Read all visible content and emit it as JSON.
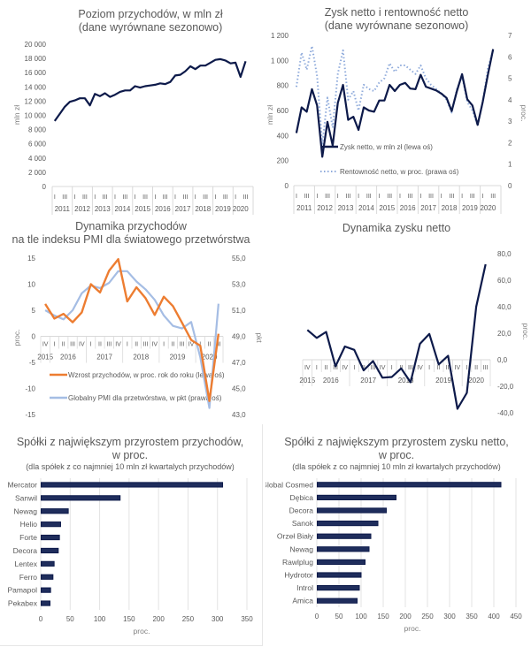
{
  "chart_data": [
    {
      "id": "revenue",
      "type": "line",
      "title": "Poziom przychodów, w mln zł",
      "subtitle": "(dane wyrównane sezonowo)",
      "ylabel": "mln zł",
      "xlabel": "",
      "ylim": [
        0,
        20000
      ],
      "yticks": [
        0,
        2000,
        4000,
        6000,
        8000,
        10000,
        12000,
        14000,
        16000,
        18000,
        20000
      ],
      "ytick_labels": [
        "0",
        "2 000",
        "4 000",
        "6 000",
        "8 000",
        "10 000",
        "12 000",
        "14 000",
        "16 000",
        "18 000",
        "20 000"
      ],
      "quarter_labels": [
        "I",
        "",
        "III",
        ""
      ],
      "years": [
        "2011",
        "2012",
        "2013",
        "2014",
        "2015",
        "2016",
        "2017",
        "2018",
        "2019",
        "2020"
      ],
      "last_year_quarters": 3,
      "grid": false,
      "series": [
        {
          "name": "Poziom przychodów",
          "color": "#0d1a4a",
          "style": "solid",
          "values": [
            9200,
            10200,
            11200,
            11900,
            12100,
            12400,
            12400,
            11400,
            13000,
            12700,
            13100,
            12600,
            12900,
            13300,
            13500,
            13500,
            14100,
            13900,
            14100,
            14200,
            14300,
            14500,
            14400,
            14700,
            15600,
            15700,
            16200,
            16900,
            16500,
            17000,
            17000,
            17400,
            17800,
            17900,
            17700,
            17300,
            17400,
            15400,
            17600
          ]
        }
      ]
    },
    {
      "id": "profit",
      "type": "line",
      "title": "Zysk netto i rentowność netto",
      "subtitle": "(dane wyrównane sezonowo)",
      "ylabel": "mln zł",
      "ylabel_right": "proc.",
      "ylim": [
        0,
        1200
      ],
      "ylim_right": [
        0,
        7
      ],
      "yticks": [
        0,
        200,
        400,
        600,
        800,
        1000,
        1200
      ],
      "ytick_labels": [
        "0",
        "200",
        "400",
        "600",
        "800",
        "1 000",
        "1 200"
      ],
      "yticks_right": [
        0,
        1,
        2,
        3,
        4,
        5,
        6,
        7
      ],
      "ytick_labels_right": [
        "0",
        "1",
        "2",
        "3",
        "4",
        "5",
        "6",
        "7"
      ],
      "quarter_labels": [
        "I",
        "",
        "III",
        ""
      ],
      "years": [
        "2011",
        "2012",
        "2013",
        "2014",
        "2015",
        "2016",
        "2017",
        "2018",
        "2019",
        "2020"
      ],
      "last_year_quarters": 3,
      "legend": [
        "Zysk netto, w mln zł (lewa oś)",
        "Rentowność netto, w proc. (prawa oś)"
      ],
      "series": [
        {
          "name": "Zysk netto, w mln zł (lewa oś)",
          "color": "#0d1a4a",
          "style": "solid",
          "axis": "left",
          "values": [
            420,
            625,
            590,
            770,
            640,
            230,
            510,
            320,
            660,
            805,
            525,
            550,
            445,
            625,
            600,
            590,
            680,
            680,
            805,
            755,
            805,
            820,
            775,
            770,
            885,
            790,
            775,
            760,
            735,
            700,
            595,
            755,
            890,
            690,
            640,
            485,
            670,
            890,
            1090
          ]
        },
        {
          "name": "Rentowność netto, w proc. (prawa oś)",
          "color": "#8eaadb",
          "style": "dotted",
          "axis": "right",
          "values": [
            4.6,
            6.2,
            5.4,
            6.5,
            5.1,
            1.9,
            4.1,
            2.7,
            5.2,
            6.3,
            4.0,
            4.4,
            3.5,
            4.7,
            4.5,
            4.4,
            4.8,
            5.0,
            5.7,
            5.3,
            5.6,
            5.6,
            5.4,
            5.2,
            5.6,
            5.0,
            4.7,
            4.5,
            4.3,
            4.0,
            3.4,
            4.5,
            5.1,
            3.9,
            3.5,
            2.8,
            3.9,
            5.5,
            6.3
          ]
        }
      ]
    },
    {
      "id": "revenue-dynamics",
      "type": "line",
      "title": "Dynamika przychodów",
      "subtitle": "na tle indeksu PMI dla światowego przetwórstwa",
      "ylabel": "proc.",
      "ylabel_right": "pkt",
      "ylim": [
        -15,
        15
      ],
      "ylim_right": [
        43.0,
        55.0
      ],
      "yticks": [
        -15,
        -10,
        -5,
        0,
        5,
        10,
        15
      ],
      "ytick_labels": [
        "-15",
        "-10",
        "-5",
        "0",
        "5",
        "10",
        "15"
      ],
      "yticks_right": [
        43,
        45,
        47,
        49,
        51,
        53,
        55
      ],
      "ytick_labels_right": [
        "43,0",
        "45,0",
        "47,0",
        "49,0",
        "51,0",
        "53,0",
        "55,0"
      ],
      "quarters": [
        "IV",
        "I",
        "II",
        "III",
        "IV",
        "I",
        "II",
        "III",
        "IV",
        "I",
        "II",
        "III",
        "IV",
        "I",
        "II",
        "III",
        "IV",
        "I",
        "II",
        "III"
      ],
      "year_groups": [
        {
          "label": "2015",
          "count": 1
        },
        {
          "label": "2016",
          "count": 4
        },
        {
          "label": "2017",
          "count": 4
        },
        {
          "label": "2018",
          "count": 4
        },
        {
          "label": "2019",
          "count": 4
        },
        {
          "label": "2020",
          "count": 3
        }
      ],
      "legend": [
        "Wzrost przychodów, w proc. rok do roku (lewa oś)",
        "Globalny PMI dla przetwórstwa, w pkt (prawa oś)"
      ],
      "series": [
        {
          "name": "Wzrost przychodów, w proc. rok do roku (lewa oś)",
          "color": "#ed7d31",
          "axis": "left",
          "values": [
            6.2,
            3.4,
            4.3,
            2.7,
            4.6,
            10.0,
            8.4,
            12.6,
            14.8,
            6.7,
            9.4,
            7.3,
            4.1,
            7.6,
            5.8,
            2.6,
            -0.7,
            -1.8,
            -12.4,
            0.5
          ]
        },
        {
          "name": "Globalny PMI dla przetwórstwa, w pkt (prawa oś)",
          "color": "#a5bde4",
          "axis": "right",
          "values": [
            51.0,
            50.6,
            50.3,
            51.0,
            52.3,
            52.9,
            52.7,
            53.1,
            54.0,
            54.0,
            53.2,
            52.6,
            51.8,
            50.6,
            49.8,
            49.6,
            50.1,
            47.4,
            43.5,
            51.5
          ]
        }
      ]
    },
    {
      "id": "profit-dynamics",
      "type": "line",
      "title": "Dynamika zysku netto",
      "ylabel_right": "proc.",
      "ylim": [
        -40,
        80
      ],
      "yticks": [
        -40,
        -20,
        0,
        20,
        40,
        60,
        80
      ],
      "ytick_labels": [
        "-40,0",
        "-20,0",
        "0,0",
        "20,0",
        "40,0",
        "60,0",
        "80,0"
      ],
      "quarters": [
        "IV",
        "I",
        "II",
        "III",
        "IV",
        "I",
        "II",
        "III",
        "IV",
        "I",
        "II",
        "III",
        "IV",
        "I",
        "II",
        "III",
        "IV",
        "I",
        "II",
        "III"
      ],
      "year_groups": [
        {
          "label": "2015",
          "count": 1
        },
        {
          "label": "2016",
          "count": 4
        },
        {
          "label": "2017",
          "count": 4
        },
        {
          "label": "2018",
          "count": 4
        },
        {
          "label": "2019",
          "count": 4
        },
        {
          "label": "2020",
          "count": 3
        }
      ],
      "series": [
        {
          "name": "Dynamika zysku netto",
          "color": "#0d1a4a",
          "values": [
            22.5,
            16.5,
            21.0,
            -5.0,
            10.0,
            7.5,
            -8.0,
            -1.0,
            -13.5,
            -13.0,
            -6.5,
            -17.0,
            12.0,
            19.5,
            -3.5,
            3.0,
            -37.0,
            -25.0,
            40.0,
            72.0
          ]
        }
      ]
    },
    {
      "id": "top-revenue-growth",
      "type": "bar",
      "orientation": "horizontal",
      "title": "Spółki z największym przyrostem przychodów,",
      "title2": "w proc.",
      "subtitle": "(dla spółek z co najmniej 10 mln zł kwartalych przychodów)",
      "xlabel": "proc.",
      "xlim": [
        0,
        350
      ],
      "xticks": [
        0,
        50,
        100,
        150,
        200,
        250,
        300,
        350
      ],
      "grid": true,
      "bar_color": "#1f2d5c",
      "bar_edge": "#0d1a4a",
      "categories": [
        "Mercator",
        "Sanwil",
        "Newag",
        "Helio",
        "Forte",
        "Decora",
        "Lentex",
        "Ferro",
        "Pamapol",
        "Pekabex"
      ],
      "values": [
        308,
        134,
        46,
        33,
        31,
        29,
        22,
        20,
        16,
        15
      ]
    },
    {
      "id": "top-profit-growth",
      "type": "bar",
      "orientation": "horizontal",
      "title": "Spółki z największym przyrostem zysku netto,",
      "title2": "w proc.",
      "subtitle": "(dla spółek z co najmniej 10 mln zł kwartalych przychodów)",
      "xlabel": "proc.",
      "xlim": [
        0,
        450
      ],
      "xticks": [
        0,
        50,
        100,
        150,
        200,
        250,
        300,
        350,
        400,
        450
      ],
      "grid": true,
      "bar_color": "#1f2d5c",
      "bar_edge": "#0d1a4a",
      "categories": [
        "Global Cosmed",
        "Dębica",
        "Decora",
        "Sanok",
        "Orzeł Biały",
        "Newag",
        "Rawlplug",
        "Hydrotor",
        "Introl",
        "Amica"
      ],
      "values": [
        415,
        178,
        156,
        137,
        121,
        117,
        108,
        99,
        95,
        90
      ]
    }
  ]
}
